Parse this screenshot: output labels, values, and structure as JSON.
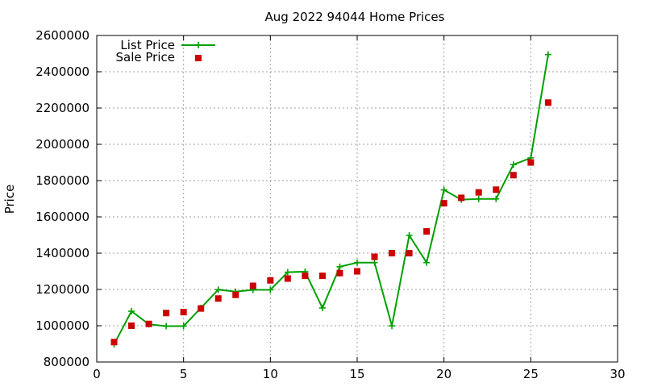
{
  "chart_data": {
    "type": "line",
    "title": "Aug 2022 94044 Home Prices",
    "xlabel": "",
    "ylabel": "Price",
    "xlim": [
      0,
      30
    ],
    "ylim": [
      800000,
      2600000
    ],
    "x_ticks": [
      0,
      5,
      10,
      15,
      20,
      25,
      30
    ],
    "x_tick_labels": [
      "0",
      "5",
      "10",
      "15",
      "20",
      "25",
      "30"
    ],
    "y_ticks": [
      800000,
      1000000,
      1200000,
      1400000,
      1600000,
      1800000,
      2000000,
      2200000,
      2400000,
      2600000
    ],
    "y_tick_labels": [
      "800000",
      "1000000",
      "1200000",
      "1400000",
      "1600000",
      "1800000",
      "2000000",
      "2200000",
      "2400000",
      "2600000"
    ],
    "grid": true,
    "legend_position": "top-left",
    "x": [
      1,
      2,
      3,
      4,
      5,
      6,
      7,
      8,
      9,
      10,
      11,
      12,
      13,
      14,
      15,
      16,
      17,
      18,
      19,
      20,
      21,
      22,
      23,
      24,
      25,
      26
    ],
    "series": [
      {
        "name": "List Price",
        "style": "line-with-plus",
        "color": "#00a000",
        "values": [
          898000,
          1080000,
          1008000,
          998000,
          998000,
          1098000,
          1199000,
          1188000,
          1198000,
          1198000,
          1295000,
          1298000,
          1098000,
          1325000,
          1348000,
          1348000,
          999000,
          1498000,
          1348000,
          1749000,
          1695000,
          1699000,
          1699000,
          1888000,
          1925000,
          2495000
        ]
      },
      {
        "name": "Sale Price",
        "style": "square-markers",
        "color": "#cc0000",
        "values": [
          910000,
          1000000,
          1010000,
          1070000,
          1075000,
          1095000,
          1150000,
          1170000,
          1220000,
          1250000,
          1260000,
          1275000,
          1275000,
          1290000,
          1300000,
          1380000,
          1400000,
          1400000,
          1520000,
          1675000,
          1705000,
          1735000,
          1750000,
          1830000,
          1900000,
          2230000
        ]
      }
    ]
  }
}
